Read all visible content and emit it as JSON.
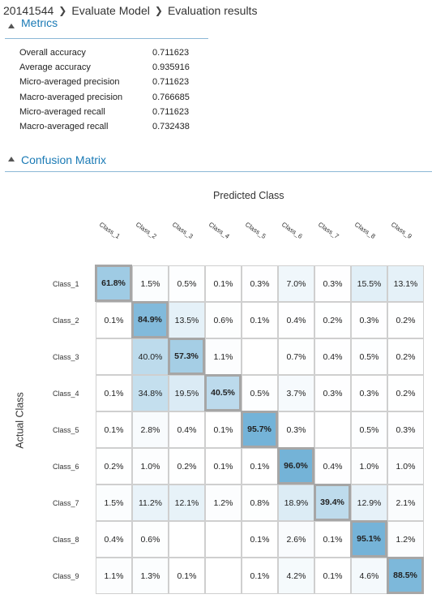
{
  "breadcrumb": {
    "items": [
      "20141544",
      "Evaluate Model",
      "Evaluation results"
    ]
  },
  "metrics": {
    "title": "Metrics",
    "rows": [
      {
        "label": "Overall accuracy",
        "value": "0.711623"
      },
      {
        "label": "Average accuracy",
        "value": "0.935916"
      },
      {
        "label": "Micro-averaged precision",
        "value": "0.711623"
      },
      {
        "label": "Macro-averaged precision",
        "value": "0.766685"
      },
      {
        "label": "Micro-averaged recall",
        "value": "0.711623"
      },
      {
        "label": "Macro-averaged recall",
        "value": "0.732438"
      }
    ]
  },
  "confusion": {
    "title": "Confusion Matrix",
    "predicted_label": "Predicted Class",
    "actual_label": "Actual Class",
    "classes": [
      "Class_1",
      "Class_2",
      "Class_3",
      "Class_4",
      "Class_5",
      "Class_6",
      "Class_7",
      "Class_8",
      "Class_9"
    ],
    "matrix": [
      [
        61.8,
        1.5,
        0.5,
        0.1,
        0.3,
        7.0,
        0.3,
        15.5,
        13.1
      ],
      [
        0.1,
        84.9,
        13.5,
        0.6,
        0.1,
        0.4,
        0.2,
        0.3,
        0.2
      ],
      [
        null,
        40.0,
        57.3,
        1.1,
        null,
        0.7,
        0.4,
        0.5,
        0.2
      ],
      [
        0.1,
        34.8,
        19.5,
        40.5,
        0.5,
        3.7,
        0.3,
        0.3,
        0.2
      ],
      [
        0.1,
        2.8,
        0.4,
        0.1,
        95.7,
        0.3,
        null,
        0.5,
        0.3
      ],
      [
        0.2,
        1.0,
        0.2,
        0.1,
        0.1,
        96.0,
        0.4,
        1.0,
        1.0
      ],
      [
        1.5,
        11.2,
        12.1,
        1.2,
        0.8,
        18.9,
        39.4,
        12.9,
        2.1
      ],
      [
        0.4,
        0.6,
        null,
        null,
        0.1,
        2.6,
        0.1,
        95.1,
        1.2
      ],
      [
        1.1,
        1.3,
        0.1,
        null,
        0.1,
        4.2,
        0.1,
        4.6,
        88.5
      ]
    ],
    "colors": {
      "max": "#6fb0d6",
      "min": "#ffffff",
      "diag_border": "#a6a6a6",
      "cell_border": "#cfcfcf"
    }
  }
}
